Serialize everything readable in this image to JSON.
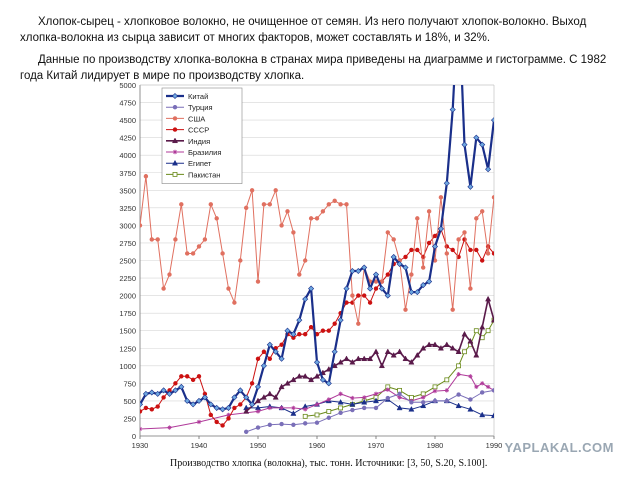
{
  "text": {
    "paragraph1": "Хлопок-сырец - хлопковое волокно, не очищенное от семян. Из него получают хлопок-волокно. Выход хлопка-волокна из сырца зависит от многих факторов, может составлять и 18%, и 32%.",
    "paragraph2": "Данные по производству хлопка-волокна в странах мира приведены на диаграмме и гистограмме. С 1982 года Китай лидирует в мире по производству хлопка.",
    "caption": "Производство хлопка (волокна), тыс. тонн. Источники: [3, 50, S.20, S.100].",
    "watermark": "YAPLAKAL.COM"
  },
  "chart_data": {
    "type": "line",
    "title": "",
    "xlabel": "",
    "ylabel": "",
    "xlim": [
      1930,
      1990
    ],
    "ylim": [
      0,
      5000
    ],
    "xticks": [
      1930,
      1940,
      1950,
      1960,
      1970,
      1980,
      1990
    ],
    "yticks": [
      0,
      250,
      500,
      750,
      1000,
      1250,
      1500,
      1750,
      2000,
      2250,
      2500,
      2750,
      3000,
      3250,
      3500,
      3750,
      4000,
      4250,
      4500,
      4750,
      5000
    ],
    "grid": true,
    "legend_position": "top-left",
    "series": [
      {
        "name": "Китай",
        "color": "#1a2f8a",
        "marker": "diamond",
        "width": 2.2,
        "x": [
          1930,
          1931,
          1932,
          1933,
          1934,
          1935,
          1936,
          1937,
          1938,
          1939,
          1940,
          1941,
          1942,
          1943,
          1944,
          1945,
          1946,
          1947,
          1948,
          1949,
          1950,
          1951,
          1952,
          1953,
          1954,
          1955,
          1956,
          1957,
          1958,
          1959,
          1960,
          1961,
          1962,
          1963,
          1964,
          1965,
          1966,
          1967,
          1968,
          1969,
          1970,
          1971,
          1972,
          1973,
          1974,
          1975,
          1976,
          1977,
          1978,
          1979,
          1980,
          1981,
          1982,
          1983,
          1984,
          1985,
          1986,
          1987,
          1988,
          1989,
          1990
        ],
        "y": [
          450,
          600,
          620,
          600,
          650,
          600,
          650,
          700,
          500,
          450,
          500,
          550,
          450,
          400,
          380,
          400,
          550,
          650,
          550,
          450,
          700,
          1000,
          1300,
          1200,
          1100,
          1500,
          1450,
          1650,
          1950,
          2100,
          1050,
          800,
          750,
          1200,
          1650,
          2100,
          2350,
          2350,
          2400,
          2100,
          2300,
          2100,
          2000,
          2550,
          2450,
          2400,
          2050,
          2050,
          2150,
          2200,
          2700,
          2950,
          3600,
          4650,
          6250,
          4150,
          3550,
          4250,
          4150,
          3800,
          4500
        ]
      },
      {
        "name": "Турция",
        "color": "#7a6fb8",
        "marker": "circle",
        "width": 1,
        "x": [
          1948,
          1950,
          1952,
          1954,
          1956,
          1958,
          1960,
          1962,
          1964,
          1966,
          1968,
          1970,
          1972,
          1974,
          1976,
          1978,
          1980,
          1982,
          1984,
          1986,
          1988,
          1990
        ],
        "y": [
          60,
          120,
          160,
          170,
          160,
          180,
          190,
          260,
          330,
          370,
          400,
          400,
          540,
          600,
          480,
          480,
          500,
          500,
          590,
          520,
          620,
          650
        ]
      },
      {
        "name": "США",
        "color": "#e07060",
        "marker": "circle",
        "width": 1,
        "x": [
          1930,
          1931,
          1932,
          1933,
          1934,
          1935,
          1936,
          1937,
          1938,
          1939,
          1940,
          1941,
          1942,
          1943,
          1944,
          1945,
          1946,
          1947,
          1948,
          1949,
          1950,
          1951,
          1952,
          1953,
          1954,
          1955,
          1956,
          1957,
          1958,
          1959,
          1960,
          1961,
          1962,
          1963,
          1964,
          1965,
          1966,
          1967,
          1968,
          1969,
          1970,
          1971,
          1972,
          1973,
          1974,
          1975,
          1976,
          1977,
          1978,
          1979,
          1980,
          1981,
          1982,
          1983,
          1984,
          1985,
          1986,
          1987,
          1988,
          1989,
          1990
        ],
        "y": [
          3000,
          3700,
          2800,
          2800,
          2100,
          2300,
          2800,
          3300,
          2600,
          2600,
          2700,
          2800,
          3300,
          3100,
          2600,
          2100,
          1900,
          2500,
          3250,
          3500,
          2200,
          3300,
          3300,
          3500,
          3000,
          3200,
          2900,
          2300,
          2500,
          3100,
          3100,
          3200,
          3300,
          3350,
          3300,
          3300,
          2000,
          1600,
          2400,
          2200,
          2200,
          2200,
          2900,
          2800,
          2500,
          1800,
          2300,
          3100,
          2400,
          3200,
          2500,
          3400,
          2600,
          1800,
          2800,
          2900,
          2100,
          3100,
          3200,
          2600,
          3400
        ]
      },
      {
        "name": "СССР",
        "color": "#cc1111",
        "marker": "circle",
        "width": 1,
        "x": [
          1930,
          1931,
          1932,
          1933,
          1934,
          1935,
          1936,
          1937,
          1938,
          1939,
          1940,
          1941,
          1942,
          1943,
          1944,
          1945,
          1946,
          1947,
          1948,
          1949,
          1950,
          1951,
          1952,
          1953,
          1954,
          1955,
          1956,
          1957,
          1958,
          1959,
          1960,
          1961,
          1962,
          1963,
          1964,
          1965,
          1966,
          1967,
          1968,
          1969,
          1970,
          1971,
          1972,
          1973,
          1974,
          1975,
          1976,
          1977,
          1978,
          1979,
          1980,
          1981,
          1982,
          1983,
          1984,
          1985,
          1986,
          1987,
          1988,
          1989,
          1990
        ],
        "y": [
          350,
          400,
          380,
          420,
          550,
          650,
          750,
          850,
          850,
          800,
          850,
          600,
          300,
          200,
          150,
          250,
          400,
          450,
          550,
          750,
          1100,
          1200,
          1100,
          1250,
          1300,
          1450,
          1400,
          1450,
          1450,
          1550,
          1450,
          1500,
          1500,
          1600,
          1750,
          1900,
          1900,
          2000,
          2000,
          1900,
          2100,
          2200,
          2300,
          2450,
          2500,
          2550,
          2650,
          2650,
          2550,
          2750,
          2850,
          2950,
          2700,
          2650,
          2550,
          2800,
          2650,
          2650,
          2500,
          2700,
          2600
        ]
      },
      {
        "name": "Индия",
        "color": "#5a1a4a",
        "marker": "triangle",
        "width": 1.6,
        "x": [
          1948,
          1950,
          1951,
          1952,
          1953,
          1954,
          1955,
          1956,
          1957,
          1958,
          1959,
          1960,
          1961,
          1962,
          1963,
          1964,
          1965,
          1966,
          1967,
          1968,
          1969,
          1970,
          1971,
          1972,
          1973,
          1974,
          1975,
          1976,
          1977,
          1978,
          1979,
          1980,
          1981,
          1982,
          1983,
          1984,
          1985,
          1986,
          1987,
          1988,
          1989,
          1990
        ],
        "y": [
          350,
          500,
          550,
          600,
          550,
          700,
          750,
          800,
          850,
          850,
          800,
          850,
          900,
          950,
          1000,
          1050,
          1100,
          1050,
          1100,
          1100,
          1100,
          1200,
          1000,
          1200,
          1150,
          1200,
          1100,
          1050,
          1150,
          1250,
          1300,
          1300,
          1250,
          1300,
          1250,
          1200,
          1450,
          1350,
          1150,
          1550,
          1950,
          1650
        ]
      },
      {
        "name": "Бразилия",
        "color": "#b03a9a",
        "marker": "star",
        "width": 1,
        "x": [
          1930,
          1935,
          1940,
          1945,
          1950,
          1952,
          1954,
          1956,
          1958,
          1960,
          1962,
          1964,
          1966,
          1968,
          1970,
          1972,
          1974,
          1976,
          1978,
          1980,
          1982,
          1984,
          1986,
          1987,
          1988,
          1989,
          1990
        ],
        "y": [
          100,
          120,
          200,
          300,
          350,
          400,
          400,
          400,
          380,
          450,
          520,
          600,
          540,
          550,
          600,
          660,
          550,
          500,
          550,
          640,
          650,
          880,
          850,
          700,
          750,
          700,
          650
        ]
      },
      {
        "name": "Египет",
        "color": "#1a2f8a",
        "marker": "triangle",
        "width": 1,
        "x": [
          1948,
          1950,
          1952,
          1954,
          1956,
          1958,
          1960,
          1962,
          1964,
          1966,
          1968,
          1970,
          1972,
          1974,
          1976,
          1978,
          1980,
          1982,
          1984,
          1986,
          1988,
          1990
        ],
        "y": [
          400,
          400,
          420,
          400,
          320,
          420,
          450,
          500,
          480,
          450,
          480,
          500,
          520,
          400,
          380,
          430,
          500,
          500,
          430,
          380,
          300,
          290
        ]
      },
      {
        "name": "Пакистан",
        "color": "#6a8a1a",
        "marker": "square",
        "width": 1,
        "x": [
          1958,
          1960,
          1962,
          1964,
          1966,
          1968,
          1970,
          1972,
          1974,
          1976,
          1978,
          1980,
          1982,
          1984,
          1985,
          1986,
          1987,
          1988,
          1989,
          1990
        ],
        "y": [
          280,
          300,
          350,
          400,
          450,
          500,
          550,
          700,
          650,
          550,
          600,
          700,
          800,
          1000,
          1200,
          1300,
          1500,
          1400,
          1500,
          1650
        ]
      }
    ]
  }
}
